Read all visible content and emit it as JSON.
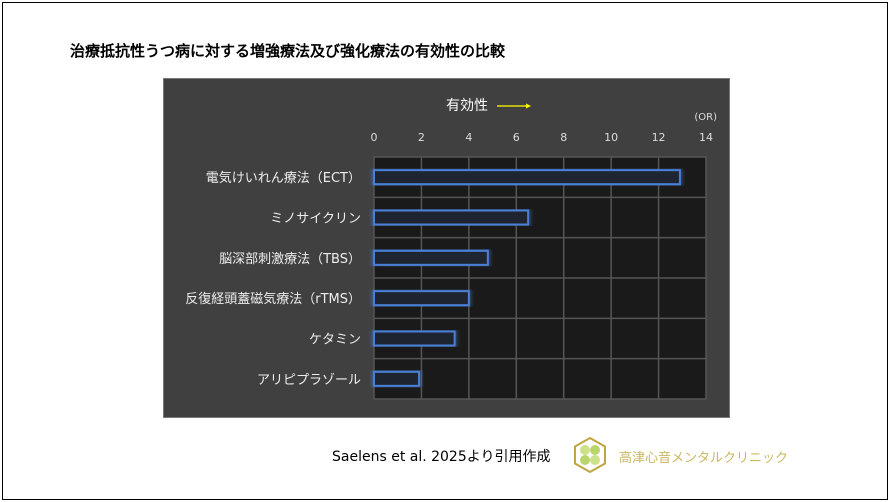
{
  "title": "治療抵抗性うつ病に対する増強療法及び強化療法の有効性の比較",
  "chart_data": {
    "type": "bar",
    "orientation": "horizontal",
    "title": "有効性",
    "unit_label": "(OR)",
    "categories": [
      "電気けいれん療法（ECT）",
      "ミノサイクリン",
      "脳深部刺激療法（TBS）",
      "反復経頭蓋磁気療法（rTMS）",
      "ケタミン",
      "アリピプラゾール"
    ],
    "values": [
      12.9,
      6.5,
      4.8,
      4.0,
      3.4,
      1.9
    ],
    "xlim": [
      0,
      14
    ],
    "xticks": [
      "0",
      "2",
      "4",
      "6",
      "8",
      "10",
      "12",
      "14"
    ],
    "grid": true,
    "colors": {
      "bar_edge": "#4a7fd6",
      "bar_fill": "#1e2430",
      "plot_bg": "#1a1a1a",
      "arrow": "#ffff00"
    }
  },
  "footer": {
    "citation": "Saelens et al. 2025より引用作成",
    "clinic": "高津心音メンタルクリニック"
  }
}
